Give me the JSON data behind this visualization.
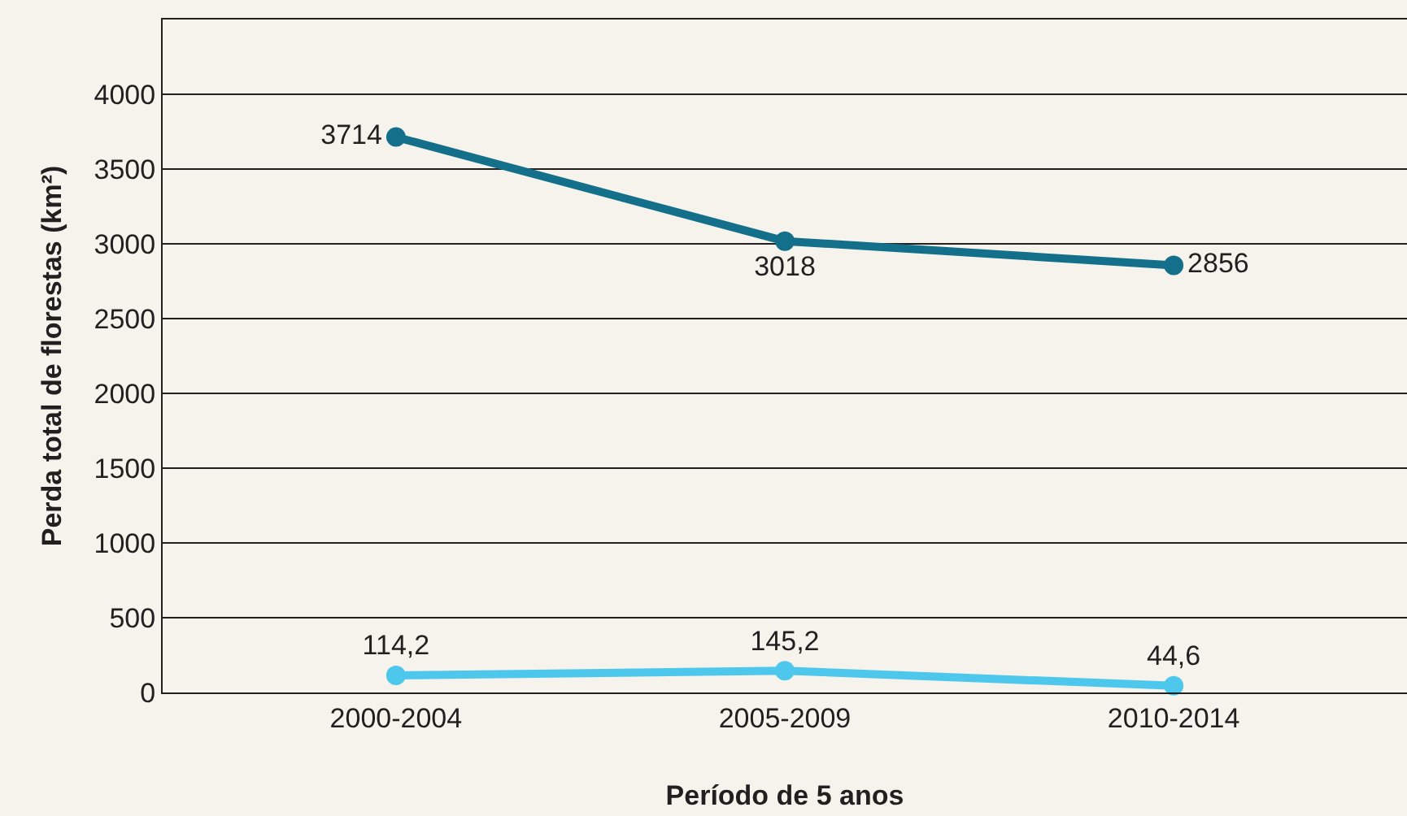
{
  "chart_data": {
    "type": "line",
    "xlabel": "Período de 5 anos",
    "ylabel": "Perda total de florestas (km²)",
    "categories": [
      "2000-2004",
      "2005-2009",
      "2010-2014"
    ],
    "series": [
      {
        "color": "#136f8a",
        "values": [
          3714,
          3018,
          2856
        ],
        "value_labels": [
          "3714",
          "3018",
          "2856"
        ]
      },
      {
        "color": "#4dc8ec",
        "values": [
          114.2,
          145.2,
          44.6
        ],
        "value_labels": [
          "114,2",
          "145,2",
          "44,6"
        ]
      }
    ],
    "ylim": [
      0,
      4500
    ],
    "yticks": [
      0,
      500,
      1000,
      1500,
      2000,
      2500,
      3000,
      3500,
      4000,
      {
        "value": 4500,
        "label": null
      }
    ],
    "grid": "y",
    "marker": "circle",
    "line_style": "solid"
  }
}
